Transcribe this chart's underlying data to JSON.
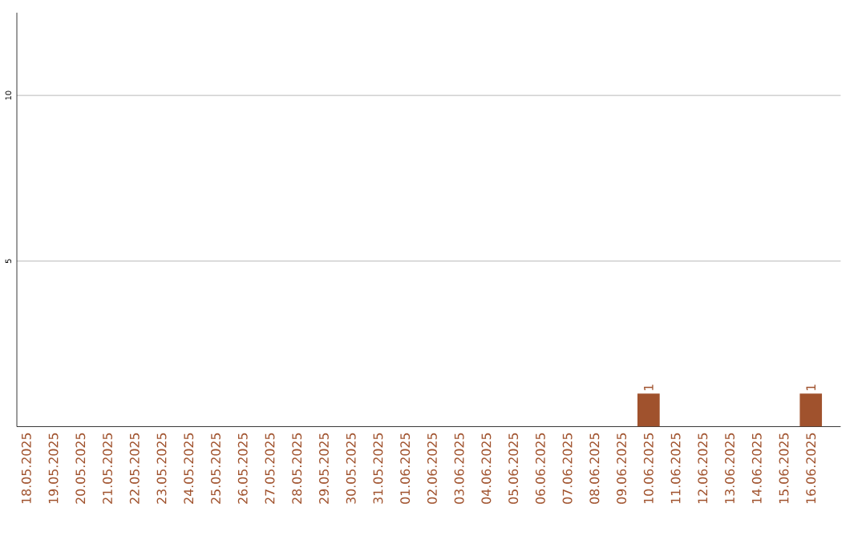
{
  "chart_data": {
    "type": "bar",
    "categories": [
      "18.05.2025",
      "19.05.2025",
      "20.05.2025",
      "21.05.2025",
      "22.05.2025",
      "23.05.2025",
      "24.05.2025",
      "25.05.2025",
      "26.05.2025",
      "27.05.2025",
      "28.05.2025",
      "29.05.2025",
      "30.05.2025",
      "31.05.2025",
      "01.06.2025",
      "02.06.2025",
      "03.06.2025",
      "04.06.2025",
      "05.06.2025",
      "06.06.2025",
      "07.06.2025",
      "08.06.2025",
      "09.06.2025",
      "10.06.2025",
      "11.06.2025",
      "12.06.2025",
      "13.06.2025",
      "14.06.2025",
      "15.06.2025",
      "16.06.2025"
    ],
    "values": [
      0,
      0,
      0,
      0,
      0,
      0,
      0,
      0,
      0,
      0,
      0,
      0,
      0,
      0,
      0,
      0,
      0,
      0,
      0,
      0,
      0,
      0,
      0,
      1,
      0,
      0,
      0,
      0,
      0,
      1
    ],
    "value_labels": [
      null,
      null,
      null,
      null,
      null,
      null,
      null,
      null,
      null,
      null,
      null,
      null,
      null,
      null,
      null,
      null,
      null,
      null,
      null,
      null,
      null,
      null,
      null,
      "1",
      null,
      null,
      null,
      null,
      null,
      "1"
    ],
    "color": "#a0522d",
    "ylim": [
      0,
      12.5
    ],
    "yticks": [
      5,
      10
    ],
    "grid": "y"
  }
}
